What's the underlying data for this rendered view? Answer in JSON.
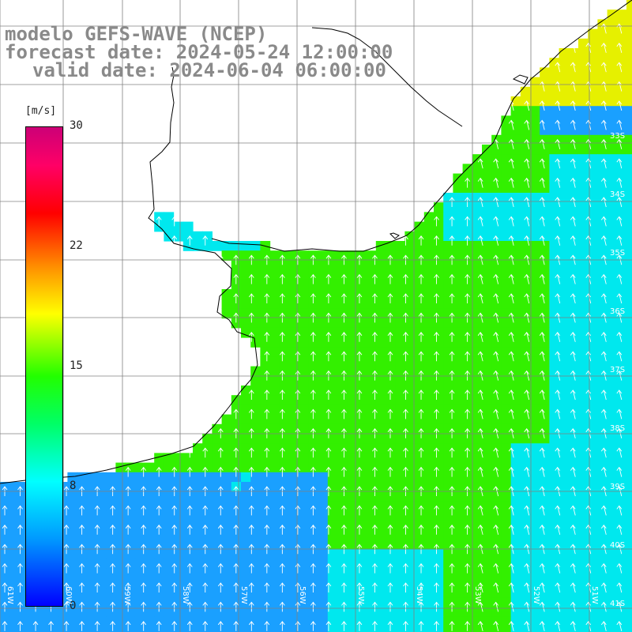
{
  "title": {
    "line1": "modelo GEFS-WAVE (NCEP)",
    "line2": "forecast date: 2024-05-24 12:00:00",
    "line3": "valid date: 2024-06-04 06:00:00"
  },
  "colorbar": {
    "units": "[m/s]",
    "ticks": [
      "30",
      "22",
      "15",
      "8",
      "0"
    ],
    "colors": [
      "#0000ff",
      "#00ffff",
      "#22ff00",
      "#ffff00",
      "#ff0000",
      "#cc0077"
    ]
  },
  "axes": {
    "lon_labels": [
      "61W",
      "60W",
      "59W",
      "58W",
      "57W",
      "56W",
      "55W",
      "54W",
      "53W",
      "52W",
      "51W"
    ],
    "lat_labels": [
      "33S",
      "34S",
      "35S",
      "36S",
      "37S",
      "38S",
      "39S",
      "40S",
      "41S"
    ]
  },
  "colors": {
    "ocean_green": "#33f000",
    "ocean_cyan": "#00e8ee",
    "ocean_blue": "#1aa0ff",
    "ocean_yellow": "#e6f000",
    "land": "#ffffff",
    "coastline": "#000000",
    "grid": "#808080",
    "arrows": "#ffffff"
  }
}
